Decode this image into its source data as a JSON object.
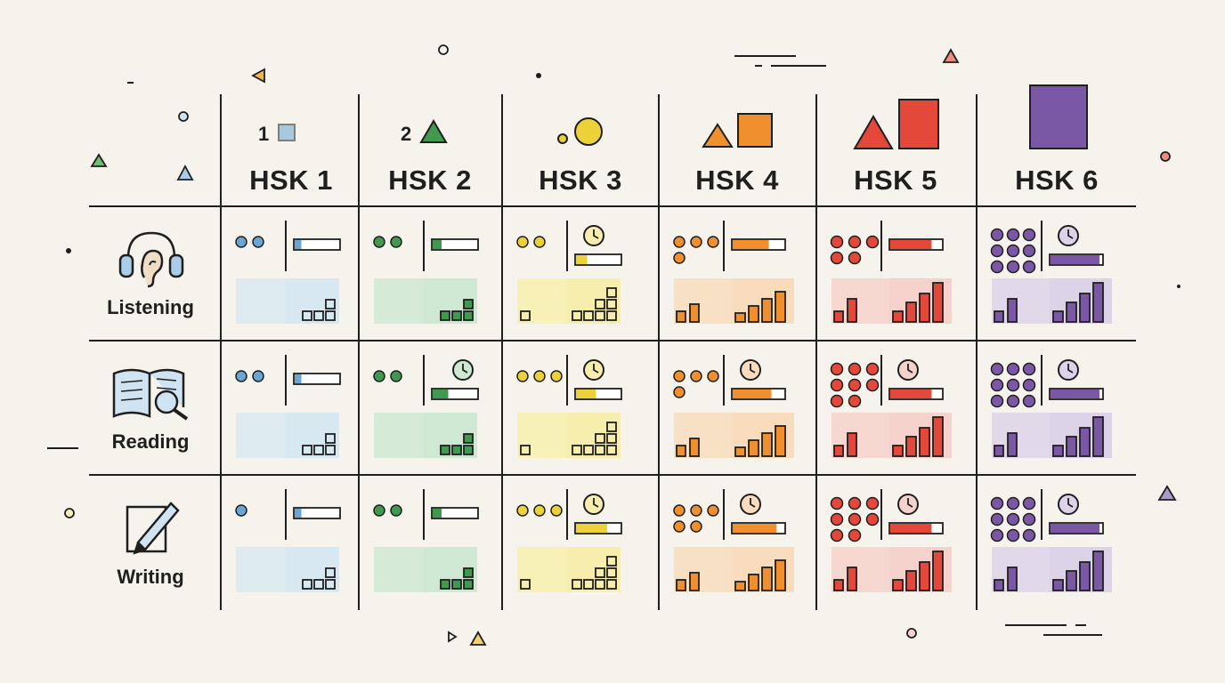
{
  "levels": [
    {
      "label": "HSK 1",
      "marker_digit": "1",
      "color": "#6aa6d4",
      "light": "#d8e8f0"
    },
    {
      "label": "HSK 2",
      "marker_digit": "2",
      "color": "#3f9a4f",
      "light": "#cfe8d3"
    },
    {
      "label": "HSK 3",
      "marker_digit": "",
      "color": "#ecd138",
      "light": "#f7eeae"
    },
    {
      "label": "HSK 4",
      "marker_digit": "",
      "color": "#ef8f2d",
      "light": "#f8dcbd"
    },
    {
      "label": "HSK 5",
      "marker_digit": "",
      "color": "#e4483a",
      "light": "#f6d2cc"
    },
    {
      "label": "HSK 6",
      "marker_digit": "",
      "color": "#7b58a5",
      "light": "#ddd3e9"
    }
  ],
  "skills": [
    {
      "label": "Listening",
      "icon": "headphones-ear-icon"
    },
    {
      "label": "Reading",
      "icon": "open-book-magnifier-icon"
    },
    {
      "label": "Writing",
      "icon": "pencil-paper-icon"
    }
  ],
  "cells": [
    [
      {
        "dots": 2,
        "clock": false,
        "fill": 0.15,
        "steps": [
          1,
          1,
          2
        ]
      },
      {
        "dots": 2,
        "clock": false,
        "fill": 0.15,
        "steps": [
          1,
          1,
          2
        ]
      },
      {
        "dots": 1,
        "clock": false,
        "fill": 0.15,
        "steps": [
          1,
          1,
          2
        ]
      }
    ],
    [
      {
        "dots": 2,
        "clock": false,
        "fill": 0.2,
        "steps": [
          1,
          1,
          2
        ]
      },
      {
        "dots": 2,
        "clock": true,
        "fill": 0.35,
        "steps": [
          1,
          1,
          2
        ]
      },
      {
        "dots": 2,
        "clock": false,
        "fill": 0.2,
        "steps": [
          1,
          1,
          2
        ]
      }
    ],
    [
      {
        "dots": 2,
        "clock": true,
        "fill": 0.25,
        "steps": [
          1,
          1,
          2,
          3
        ]
      },
      {
        "dots": 3,
        "clock": true,
        "fill": 0.45,
        "steps": [
          1,
          1,
          2,
          3
        ]
      },
      {
        "dots": 3,
        "clock": true,
        "fill": 0.7,
        "steps": [
          1,
          1,
          2,
          3
        ]
      }
    ],
    [
      {
        "dots": 4,
        "clock": false,
        "fill": 0.7,
        "steps": [
          1,
          1,
          2,
          3
        ]
      },
      {
        "dots": 4,
        "clock": true,
        "fill": 0.75,
        "steps": [
          1,
          2,
          3,
          3
        ]
      },
      {
        "dots": 5,
        "clock": true,
        "fill": 0.85,
        "steps": [
          1,
          2,
          3,
          3
        ]
      }
    ],
    [
      {
        "dots": 5,
        "clock": false,
        "fill": 0.8,
        "steps": [
          1,
          2,
          3,
          4
        ]
      },
      {
        "dots": 8,
        "clock": true,
        "fill": 0.8,
        "steps": [
          1,
          2,
          3,
          4
        ]
      },
      {
        "dots": 8,
        "clock": true,
        "fill": 0.8,
        "steps": [
          1,
          2,
          3,
          4
        ]
      }
    ],
    [
      {
        "dots": 9,
        "clock": true,
        "fill": 0.95,
        "steps": [
          1,
          2,
          3,
          4
        ]
      },
      {
        "dots": 9,
        "clock": true,
        "fill": 0.95,
        "steps": [
          1,
          2,
          3,
          4
        ]
      },
      {
        "dots": 9,
        "clock": true,
        "fill": 0.95,
        "steps": [
          1,
          2,
          3,
          4
        ]
      }
    ]
  ]
}
